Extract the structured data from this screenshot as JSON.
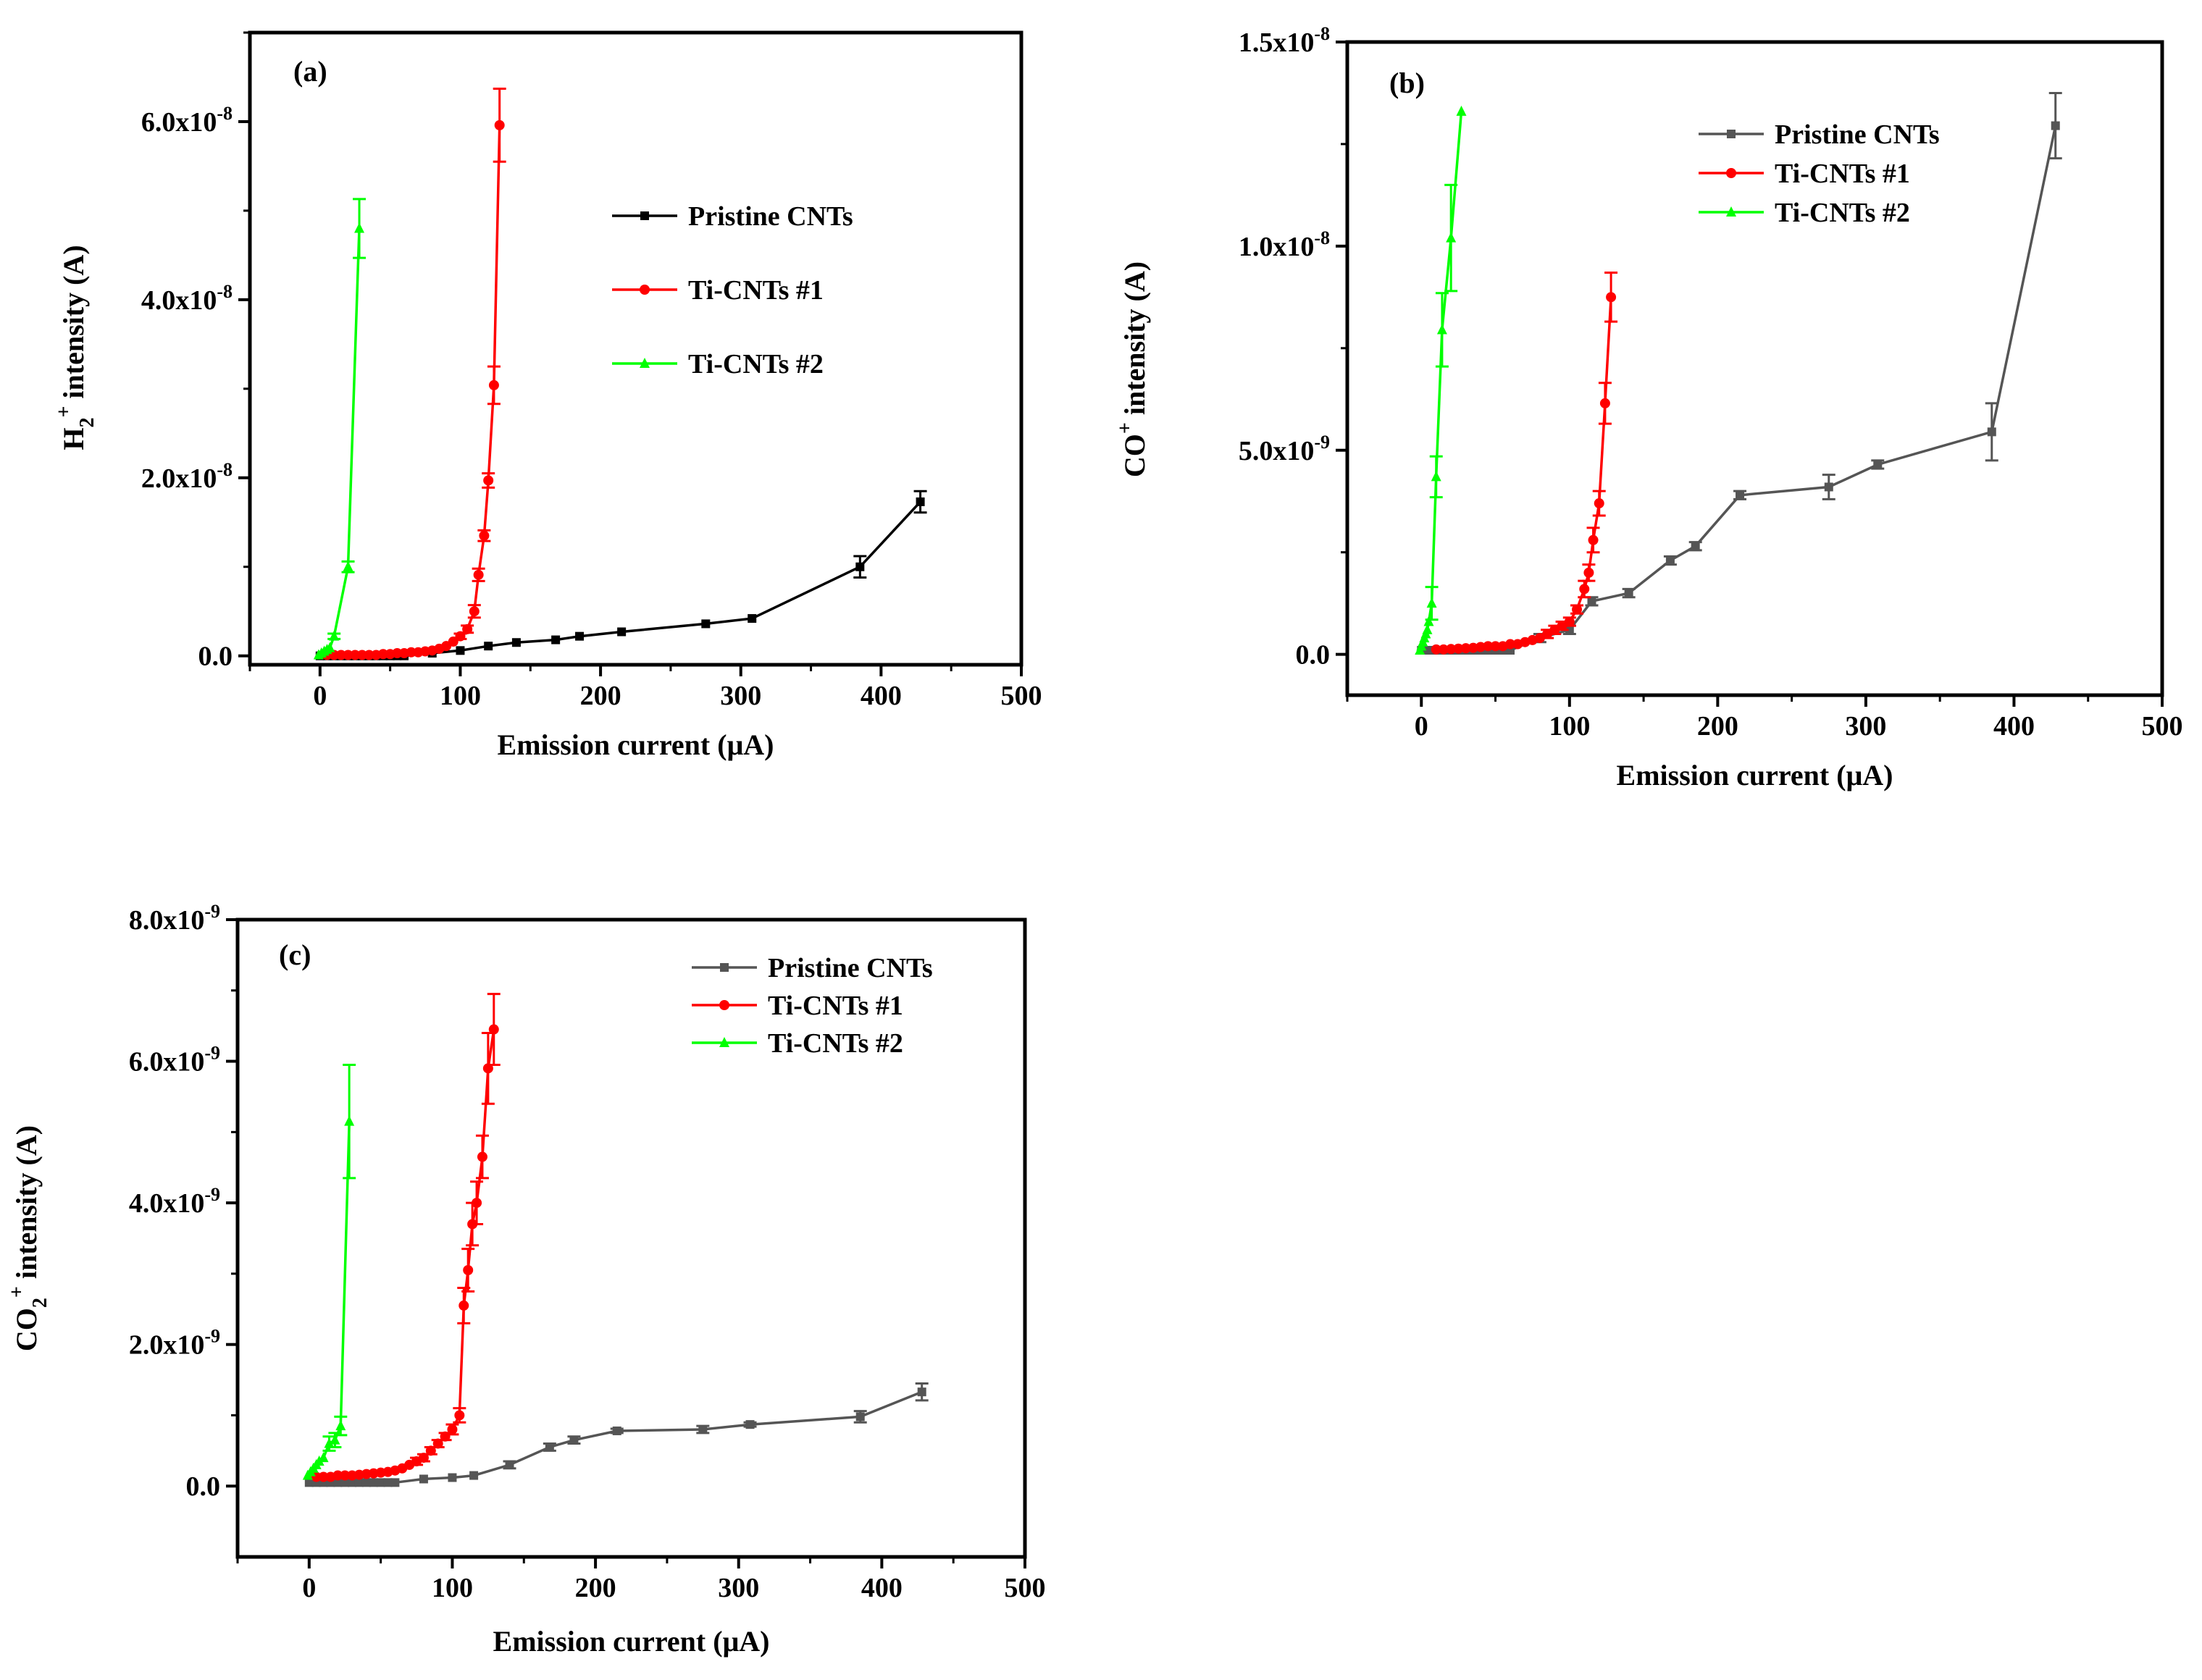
{
  "colors": {
    "pristine_a": "#000000",
    "pristine_bc": "#555555",
    "ti1": "#ff0000",
    "ti2": "#00ff00"
  },
  "chart_data": [
    {
      "type": "line",
      "panel_label": "(a)",
      "xlabel": "Emission current (μA)",
      "ylabel_main": "H",
      "ylabel_sub": "2",
      "ylabel_sup": "+",
      "ylabel_tail": " intensity (A)",
      "xlim": [
        -50,
        500
      ],
      "ylim": [
        -1e-09,
        7e-08
      ],
      "x_ticks": [
        0,
        100,
        200,
        300,
        400,
        500
      ],
      "x_tick_labels": [
        "0",
        "100",
        "200",
        "300",
        "400",
        "500"
      ],
      "y_ticks": [
        0,
        2e-08,
        4e-08,
        6e-08
      ],
      "y_tick_labels": [
        {
          "base": "0.0",
          "exp": ""
        },
        {
          "base": "2.0x10",
          "exp": "-8"
        },
        {
          "base": "4.0x10",
          "exp": "-8"
        },
        {
          "base": "6.0x10",
          "exp": "-8"
        }
      ],
      "legend_position": "upper-center",
      "series": [
        {
          "name": "Pristine CNTs",
          "color_key": "pristine_a",
          "marker": "square",
          "x": [
            0,
            5,
            10,
            15,
            20,
            25,
            30,
            35,
            40,
            45,
            50,
            55,
            60,
            80,
            100,
            120,
            140,
            168,
            185,
            215,
            275,
            308,
            385,
            428
          ],
          "y": [
            0,
            0,
            0,
            0,
            0,
            0,
            0,
            0,
            0,
            0,
            0,
            0,
            0,
            3e-10,
            6e-10,
            1.1e-09,
            1.5e-09,
            1.8e-09,
            2.2e-09,
            2.7e-09,
            3.6e-09,
            4.2e-09,
            1e-08,
            1.73e-08
          ],
          "err": [
            0,
            0,
            0,
            0,
            0,
            0,
            0,
            0,
            0,
            0,
            0,
            0,
            0,
            0,
            0,
            0,
            0,
            0,
            0,
            0,
            0,
            0,
            1.2e-09,
            1.2e-09
          ]
        },
        {
          "name": "Ti-CNTs #1",
          "color_key": "ti1",
          "marker": "circle",
          "x": [
            5,
            10,
            15,
            20,
            25,
            30,
            35,
            40,
            45,
            50,
            55,
            60,
            65,
            70,
            75,
            80,
            85,
            90,
            95,
            100,
            105,
            110,
            113,
            117,
            120,
            124,
            128
          ],
          "y": [
            1e-10,
            1e-10,
            1e-10,
            1e-10,
            1e-10,
            1e-10,
            1e-10,
            1e-10,
            2e-10,
            2e-10,
            3e-10,
            3e-10,
            4e-10,
            4e-10,
            5e-10,
            6e-10,
            8e-10,
            1.1e-09,
            1.6e-09,
            2.2e-09,
            3e-09,
            5e-09,
            9.1e-09,
            1.35e-08,
            1.97e-08,
            3.04e-08,
            5.96e-08
          ],
          "err": [
            0,
            0,
            0,
            0,
            0,
            0,
            0,
            0,
            0,
            0,
            0,
            0,
            0,
            0,
            0,
            0,
            0,
            0,
            0,
            3e-10,
            4e-10,
            7e-10,
            7e-10,
            6e-10,
            8e-10,
            2.1e-09,
            4.1e-09
          ]
        },
        {
          "name": "Ti-CNTs #2",
          "color_key": "ti2",
          "marker": "triangle",
          "x": [
            -1,
            1,
            3,
            5,
            7,
            10,
            20,
            28
          ],
          "y": [
            1e-10,
            3e-10,
            5e-10,
            7e-10,
            9e-10,
            2.2e-09,
            1e-08,
            4.8e-08
          ],
          "err": [
            0,
            0,
            0,
            0,
            0,
            3e-10,
            6e-10,
            3.3e-09
          ]
        }
      ]
    },
    {
      "type": "line",
      "panel_label": "(b)",
      "xlabel": "Emission current (μA)",
      "ylabel_main": "CO",
      "ylabel_sub": "",
      "ylabel_sup": "+",
      "ylabel_tail": " intensity (A)",
      "xlim": [
        -50,
        500
      ],
      "ylim": [
        -1e-09,
        1.5e-08
      ],
      "x_ticks": [
        0,
        100,
        200,
        300,
        400,
        500
      ],
      "x_tick_labels": [
        "0",
        "100",
        "200",
        "300",
        "400",
        "500"
      ],
      "y_ticks": [
        0,
        5e-09,
        1e-08,
        1.5e-08
      ],
      "y_tick_labels": [
        {
          "base": "0.0",
          "exp": ""
        },
        {
          "base": "5.0x10",
          "exp": "-9"
        },
        {
          "base": "1.0x10",
          "exp": "-8"
        },
        {
          "base": "1.5x10",
          "exp": "-8"
        }
      ],
      "legend_position": "upper-center",
      "series": [
        {
          "name": "Pristine CNTs",
          "color_key": "pristine_bc",
          "marker": "square",
          "x": [
            0,
            5,
            10,
            15,
            20,
            25,
            30,
            35,
            40,
            45,
            50,
            55,
            60,
            80,
            100,
            115,
            140,
            168,
            185,
            215,
            275,
            308,
            385,
            428
          ],
          "y": [
            1e-10,
            1e-10,
            1e-10,
            1e-10,
            1e-10,
            1e-10,
            1e-10,
            1e-10,
            1e-10,
            1e-10,
            1e-10,
            1e-10,
            1e-10,
            4e-10,
            6e-10,
            1.3e-09,
            1.5e-09,
            2.3e-09,
            2.65e-09,
            3.9e-09,
            4.1e-09,
            4.65e-09,
            5.45e-09,
            1.295e-08
          ],
          "err": [
            0,
            0,
            0,
            0,
            0,
            0,
            0,
            0,
            0,
            0,
            0,
            0,
            0,
            1e-10,
            1e-10,
            1e-10,
            1e-10,
            1e-10,
            1e-10,
            1e-10,
            3e-10,
            1e-10,
            7e-10,
            8e-10
          ]
        },
        {
          "name": "Ti-CNTs #1",
          "color_key": "ti1",
          "marker": "circle",
          "x": [
            10,
            15,
            20,
            25,
            30,
            35,
            40,
            45,
            50,
            55,
            60,
            65,
            70,
            75,
            80,
            85,
            90,
            95,
            100,
            105,
            110,
            113,
            116,
            120,
            124,
            128
          ],
          "y": [
            1.2e-10,
            1.2e-10,
            1.3e-10,
            1.4e-10,
            1.5e-10,
            1.6e-10,
            1.8e-10,
            2e-10,
            2e-10,
            2e-10,
            2.5e-10,
            2.5e-10,
            3e-10,
            3.5e-10,
            4e-10,
            5e-10,
            6e-10,
            7e-10,
            8e-10,
            1.1e-09,
            1.6e-09,
            2e-09,
            2.8e-09,
            3.7e-09,
            6.15e-09,
            8.75e-09
          ],
          "err": [
            0,
            0,
            0,
            0,
            0,
            0,
            0,
            0,
            0,
            0,
            0,
            0,
            0,
            0,
            0,
            1e-10,
            1e-10,
            1e-10,
            1e-10,
            1e-10,
            2e-10,
            2e-10,
            3e-10,
            3e-10,
            5e-10,
            6e-10
          ]
        },
        {
          "name": "Ti-CNTs #2",
          "color_key": "ti2",
          "marker": "triangle",
          "x": [
            -1,
            0,
            1,
            2,
            3,
            4,
            5,
            7,
            10,
            14,
            20,
            27
          ],
          "y": [
            1e-10,
            2e-10,
            3e-10,
            4e-10,
            5e-10,
            6e-10,
            8e-10,
            1.25e-09,
            4.35e-09,
            7.95e-09,
            1.02e-08,
            1.33e-08
          ],
          "err": [
            0,
            0,
            0,
            0,
            0,
            0,
            0,
            4e-10,
            5e-10,
            9e-10,
            1.3e-09,
            0
          ]
        }
      ]
    },
    {
      "type": "line",
      "panel_label": "(c)",
      "xlabel": "Emission current (μA)",
      "ylabel_main": "CO",
      "ylabel_sub": "2",
      "ylabel_sup": "+",
      "ylabel_tail": " intensity (A)",
      "xlim": [
        -50,
        500
      ],
      "ylim": [
        -1e-09,
        8e-09
      ],
      "x_ticks": [
        0,
        100,
        200,
        300,
        400,
        500
      ],
      "x_tick_labels": [
        "0",
        "100",
        "200",
        "300",
        "400",
        "500"
      ],
      "y_ticks": [
        0,
        2e-09,
        4e-09,
        6e-09,
        8e-09
      ],
      "y_tick_labels": [
        {
          "base": "0.0",
          "exp": ""
        },
        {
          "base": "2.0x10",
          "exp": "-9"
        },
        {
          "base": "4.0x10",
          "exp": "-9"
        },
        {
          "base": "6.0x10",
          "exp": "-9"
        },
        {
          "base": "8.0x10",
          "exp": "-9"
        }
      ],
      "legend_position": "upper-center",
      "series": [
        {
          "name": "Pristine CNTs",
          "color_key": "pristine_bc",
          "marker": "square",
          "x": [
            0,
            5,
            10,
            15,
            20,
            25,
            30,
            35,
            40,
            45,
            50,
            55,
            60,
            80,
            100,
            115,
            140,
            168,
            185,
            215,
            275,
            308,
            385,
            428
          ],
          "y": [
            5e-11,
            5e-11,
            5e-11,
            5e-11,
            5e-11,
            5e-11,
            5e-11,
            5e-11,
            5e-11,
            5e-11,
            5e-11,
            5e-11,
            5e-11,
            1e-10,
            1.2e-10,
            1.5e-10,
            3e-10,
            5.5e-10,
            6.5e-10,
            7.8e-10,
            8e-10,
            8.7e-10,
            9.8e-10,
            1.33e-09
          ],
          "err": [
            0,
            0,
            0,
            0,
            0,
            0,
            0,
            0,
            0,
            0,
            0,
            0,
            0,
            0,
            0,
            0,
            5e-11,
            5e-11,
            5e-11,
            3e-11,
            5e-11,
            3e-11,
            8e-11,
            1.2e-10
          ]
        },
        {
          "name": "Ti-CNTs #1",
          "color_key": "ti1",
          "marker": "circle",
          "x": [
            5,
            10,
            15,
            20,
            25,
            30,
            35,
            40,
            45,
            50,
            55,
            60,
            65,
            70,
            75,
            80,
            85,
            90,
            95,
            100,
            105,
            108,
            111,
            114,
            117,
            121,
            125,
            129
          ],
          "y": [
            1.3e-10,
            1.3e-10,
            1.3e-10,
            1.5e-10,
            1.5e-10,
            1.5e-10,
            1.6e-10,
            1.7e-10,
            1.8e-10,
            1.9e-10,
            2e-10,
            2.2e-10,
            2.5e-10,
            3e-10,
            3.5e-10,
            4e-10,
            5e-10,
            6e-10,
            7e-10,
            8e-10,
            1e-09,
            2.55e-09,
            3.05e-09,
            3.7e-09,
            4e-09,
            4.65e-09,
            5.9e-09,
            6.45e-09
          ],
          "err": [
            0,
            0,
            0,
            0,
            0,
            0,
            0,
            0,
            0,
            0,
            0,
            0,
            0,
            0,
            5e-11,
            5e-11,
            5e-11,
            5e-11,
            5e-11,
            7e-11,
            1e-10,
            2.5e-10,
            3e-10,
            3e-10,
            3e-10,
            3e-10,
            5e-10,
            5e-10
          ]
        },
        {
          "name": "Ti-CNTs #2",
          "color_key": "ti2",
          "marker": "triangle",
          "x": [
            -1,
            1,
            3,
            5,
            7,
            10,
            14,
            18,
            22,
            28
          ],
          "y": [
            1.5e-10,
            2e-10,
            2.5e-10,
            3e-10,
            3.5e-10,
            4e-10,
            6e-10,
            6.5e-10,
            8.5e-10,
            5.15e-09
          ],
          "err": [
            0,
            0,
            0,
            0,
            0,
            0,
            1e-10,
            1e-10,
            1.3e-10,
            8e-10
          ]
        }
      ]
    }
  ]
}
